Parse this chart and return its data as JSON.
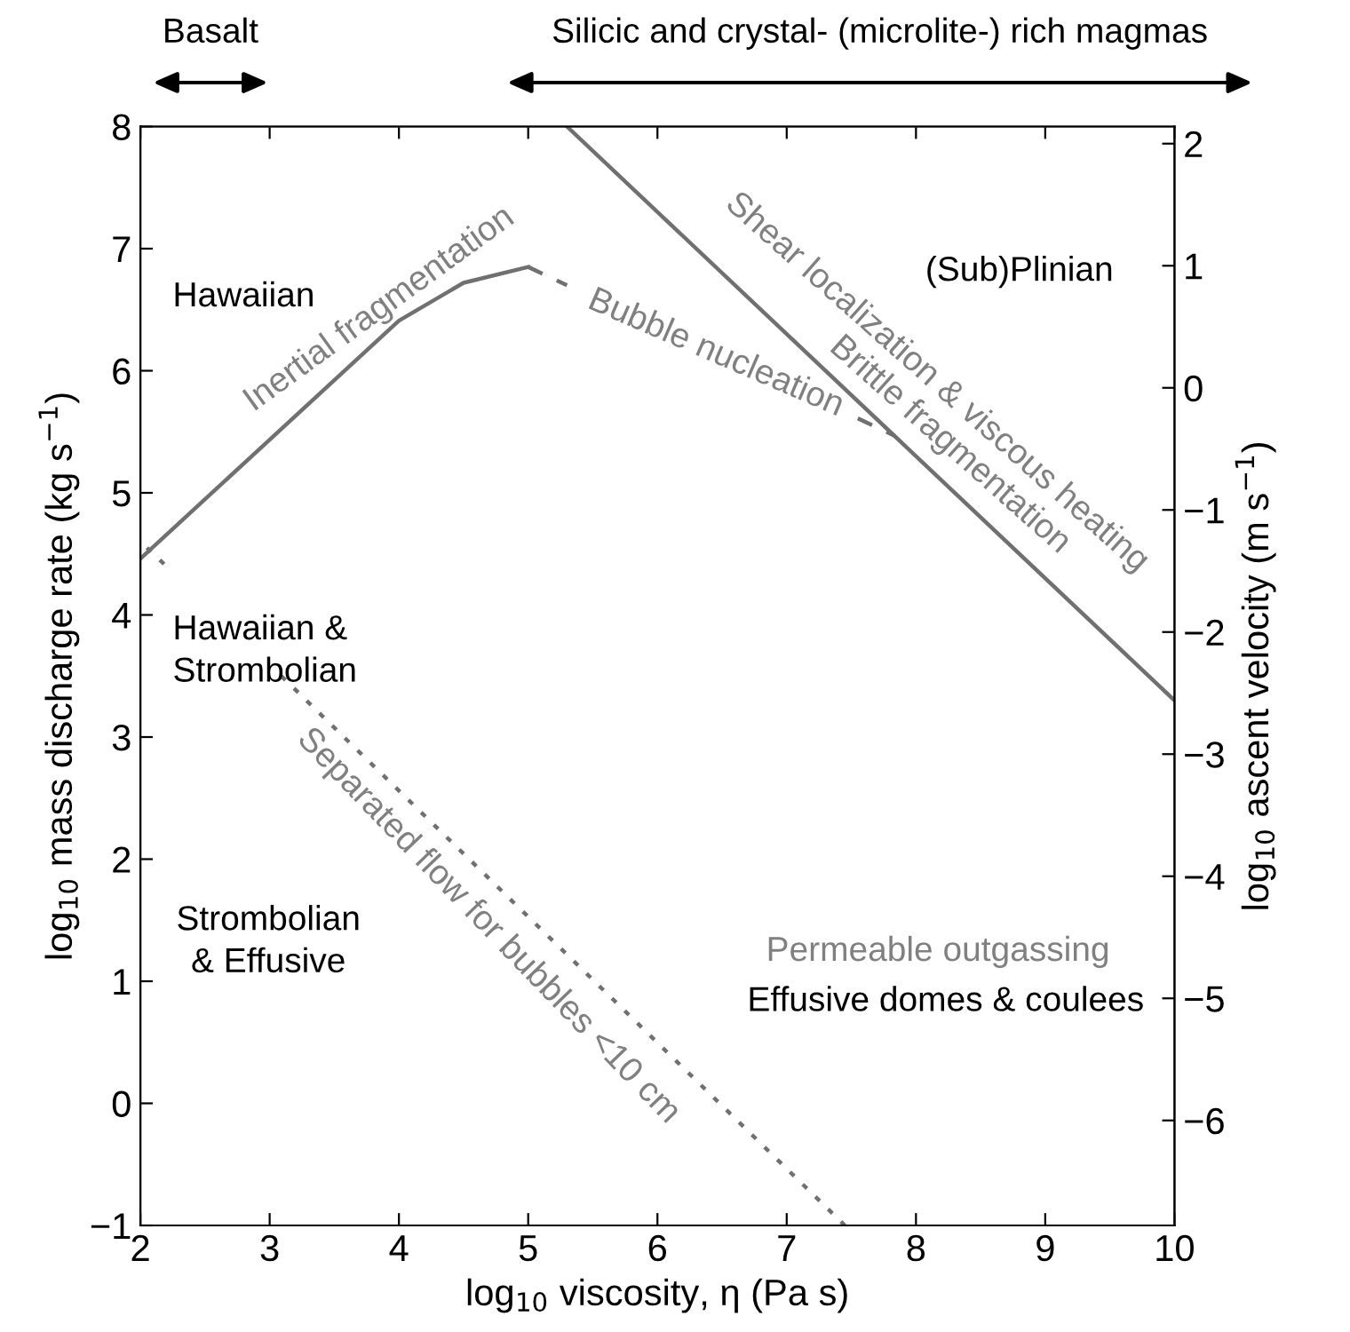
{
  "chart_data": {
    "type": "line",
    "xlabel": "log$_{10}$ viscosity, η (Pa s)",
    "ylabel": "log$_{10}$ mass discharge rate (kg s$^{−1}$)",
    "y2label": "log$_{10}$ ascent velocity (m s$^{−1}$)",
    "xlim": [
      2,
      10
    ],
    "xticks": [
      2,
      3,
      4,
      5,
      6,
      7,
      8,
      9,
      10
    ],
    "ylim": [
      -1,
      8
    ],
    "yticks": [
      -1,
      0,
      1,
      2,
      3,
      4,
      5,
      6,
      7,
      8
    ],
    "y2lim": [
      -6.86,
      2.14
    ],
    "y2ticks": [
      -6,
      -5,
      -4,
      -3,
      -2,
      -1,
      0,
      1,
      2
    ],
    "grid": false,
    "legend": false,
    "marker": "none",
    "series": [
      {
        "x": [
          2,
          4,
          4.5,
          5
        ],
        "values": [
          4.46,
          6.41,
          6.72,
          6.85
        ],
        "color": "#707070",
        "line_style": "solid"
      },
      {
        "x": [
          5,
          5.3,
          6.4,
          7.55,
          7.83
        ],
        "values": [
          6.85,
          6.7,
          null,
          5.61,
          5.47
        ],
        "color": "#707070",
        "line_style": "dashed"
      },
      {
        "x": [
          5.3,
          10
        ],
        "values": [
          8,
          3.3
        ],
        "color": "#707070",
        "line_style": "solid"
      },
      {
        "x": [
          2.05,
          2.2,
          2.6,
          3.09,
          7.45
        ],
        "values": [
          4.55,
          4.4,
          null,
          3.5,
          -1
        ],
        "color": "#707070",
        "line_style": "dotted"
      }
    ],
    "annotations": [
      "Basalt",
      "Silicic and crystal- (microlite-) rich magmas",
      "Inertial fragmentation",
      "Bubble nucleation",
      "Shear localization & viscous heating",
      "Brittle fragmentation",
      "Separated flow for bubbles <10 cm",
      "Hawaiian",
      "Hawaiian &\nStrombolian",
      "Strombolian\n& Effusive",
      "(Sub)Plinian",
      "Permeable outgassing",
      "Effusive domes & coulees"
    ]
  }
}
